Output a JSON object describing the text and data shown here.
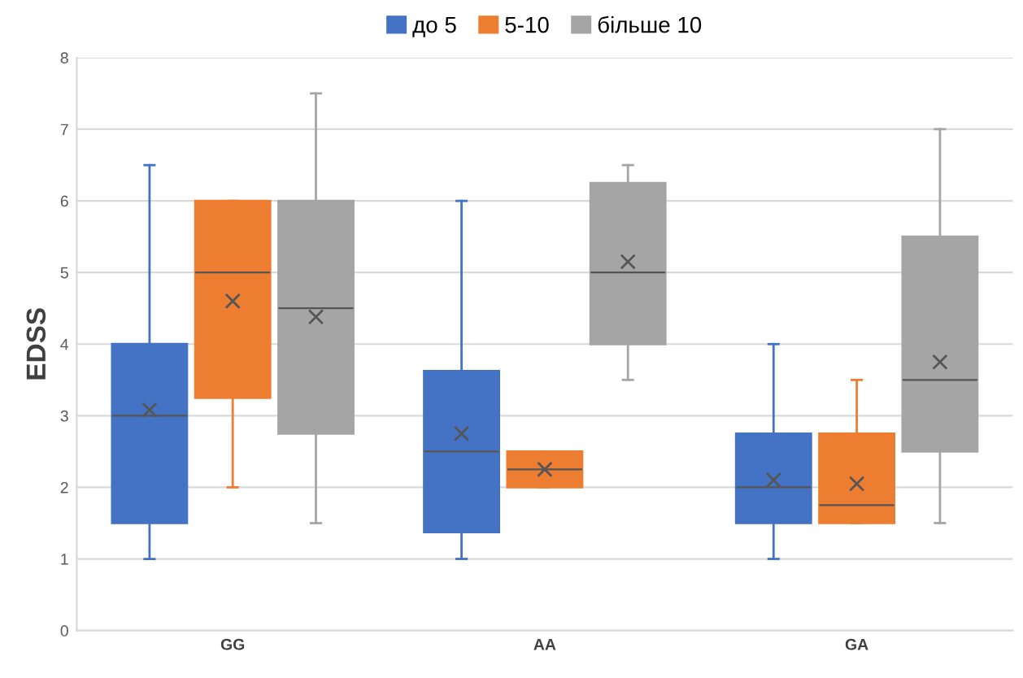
{
  "chart_data": {
    "type": "box",
    "ylabel": "EDSS",
    "categories": [
      "GG",
      "AA",
      "GA"
    ],
    "ylim": [
      0,
      8
    ],
    "yticks": [
      0,
      1,
      2,
      3,
      4,
      5,
      6,
      7,
      8
    ],
    "grid": "y",
    "legend": "top",
    "marker": "cross",
    "series": [
      {
        "name": "до 5",
        "color": "#4472c4",
        "boxes": [
          {
            "low": 1,
            "q1": 1.5,
            "median": 3,
            "q3": 4,
            "high": 6.5,
            "mean": 3.08
          },
          {
            "low": 1,
            "q1": 1.375,
            "median": 2.5,
            "q3": 3.625,
            "high": 6,
            "mean": 2.75
          },
          {
            "low": 1,
            "q1": 1.5,
            "median": 2,
            "q3": 2.75,
            "high": 4,
            "mean": 2.1
          }
        ]
      },
      {
        "name": "5-10",
        "color": "#ed7d31",
        "boxes": [
          {
            "low": 2,
            "q1": 3.25,
            "median": 5,
            "q3": 6,
            "high": 6,
            "mean": 4.6
          },
          {
            "low": 2,
            "q1": 2,
            "median": 2.25,
            "q3": 2.5,
            "high": 2.5,
            "mean": 2.25
          },
          {
            "low": 1.5,
            "q1": 1.5,
            "median": 1.75,
            "q3": 2.75,
            "high": 3.5,
            "mean": 2.05
          }
        ]
      },
      {
        "name": "більше 10",
        "color": "#a5a5a5",
        "boxes": [
          {
            "low": 1.5,
            "q1": 2.75,
            "median": 4.5,
            "q3": 6,
            "high": 7.5,
            "mean": 4.38
          },
          {
            "low": 3.5,
            "q1": 4,
            "median": 5,
            "q3": 6.25,
            "high": 6.5,
            "mean": 5.15
          },
          {
            "low": 1.5,
            "q1": 2.5,
            "median": 3.5,
            "q3": 5.5,
            "high": 7,
            "mean": 3.75
          }
        ]
      }
    ]
  }
}
